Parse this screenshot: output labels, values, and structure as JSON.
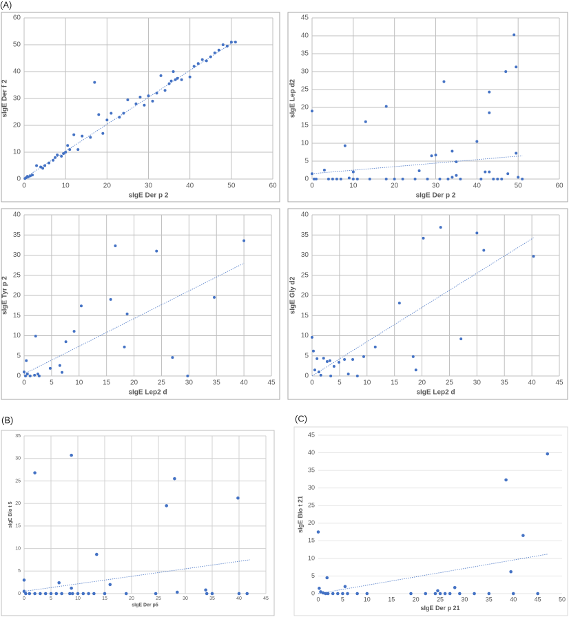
{
  "panel_labels": [
    "(A)",
    "(B)",
    "(C)"
  ],
  "chart_data": [
    {
      "type": "scatter",
      "xlabel": "sIgE Der p 2",
      "ylabel": "sIgE Der f 2",
      "color": "#4472c4",
      "grid": "both",
      "xlim": [
        0,
        60
      ],
      "ylim": [
        0,
        60
      ],
      "xticks": [
        0,
        10,
        20,
        30,
        40,
        50,
        60
      ],
      "yticks": [
        0,
        10,
        20,
        30,
        40,
        50,
        60
      ],
      "x": [
        0.2,
        0.5,
        0.8,
        1,
        1.5,
        2,
        3,
        4,
        4.5,
        5,
        6,
        7,
        7.5,
        8,
        9,
        9.5,
        10,
        10.5,
        11,
        12,
        13,
        14,
        16,
        17,
        18,
        19,
        20,
        21,
        23,
        24,
        25,
        27,
        28,
        29,
        30,
        31,
        32,
        33,
        34,
        35,
        35.5,
        36,
        36.5,
        37,
        38,
        40,
        41,
        42,
        43,
        44,
        45,
        46,
        47,
        48,
        49,
        50,
        51
      ],
      "y": [
        0.2,
        0.5,
        1,
        0.8,
        1.2,
        1.5,
        5,
        4.5,
        4,
        5,
        6,
        7,
        8,
        9,
        8.5,
        9.5,
        10,
        12.5,
        11,
        16.5,
        11,
        16,
        15.5,
        36,
        24,
        17,
        22,
        24.5,
        23,
        24.5,
        29.5,
        28,
        30.5,
        27.5,
        31,
        29,
        32,
        38.5,
        33,
        35.5,
        36.5,
        40,
        37,
        37.5,
        37,
        38,
        42,
        43,
        44.5,
        44,
        45.5,
        47,
        48,
        50,
        49.5,
        51,
        51
      ],
      "trend": {
        "x": [
          0,
          51
        ],
        "y": [
          0.3,
          51.5
        ]
      }
    },
    {
      "type": "scatter",
      "xlabel": "sIgE Der p 2",
      "ylabel": "sIgE Lep d2",
      "color": "#4472c4",
      "grid": "both",
      "xlim": [
        0,
        60
      ],
      "ylim": [
        0,
        45
      ],
      "xticks": [
        0,
        10,
        20,
        30,
        40,
        50,
        60
      ],
      "yticks": [
        0,
        5,
        10,
        15,
        20,
        25,
        30,
        35,
        40,
        45
      ],
      "x": [
        0,
        0,
        0.5,
        1,
        3,
        4,
        5,
        6,
        7,
        8,
        9,
        10,
        10,
        11,
        13,
        14,
        18,
        18,
        20,
        22,
        25,
        26,
        28,
        29,
        30,
        31,
        32,
        33,
        34,
        34,
        35,
        35,
        36,
        40,
        41,
        42,
        43,
        43,
        43,
        44,
        45,
        46,
        47,
        47.5,
        49,
        49.5,
        49.5,
        50,
        51
      ],
      "y": [
        19,
        1.5,
        0,
        0,
        2.5,
        0,
        0,
        0,
        0,
        9.3,
        0.3,
        2,
        0,
        0,
        16,
        0,
        20.3,
        0,
        0,
        0,
        0,
        2.3,
        0,
        6.5,
        6.7,
        0,
        27.2,
        0,
        7.8,
        0.5,
        4.8,
        1,
        0,
        10.5,
        0,
        2,
        24.3,
        18.5,
        2,
        0,
        0,
        0,
        30,
        1.5,
        40.3,
        31.3,
        7.2,
        0.5,
        0
      ],
      "trend": {
        "x": [
          0,
          51
        ],
        "y": [
          1.5,
          6.5
        ]
      }
    },
    {
      "type": "scatter",
      "xlabel": "sIgE Lep2 d",
      "ylabel": "sIgE Tyr p 2",
      "color": "#4472c4",
      "grid": "both",
      "xlim": [
        0,
        45
      ],
      "ylim": [
        0,
        40
      ],
      "xticks": [
        0,
        5,
        10,
        15,
        20,
        25,
        30,
        35,
        40,
        45
      ],
      "yticks": [
        0,
        5,
        10,
        15,
        20,
        25,
        30,
        35,
        40
      ],
      "x": [
        0,
        0.25,
        0.6,
        0.4,
        1.1,
        1.9,
        2.1,
        2.5,
        2.75,
        4.75,
        6.5,
        6.9,
        7.6,
        9.1,
        10.4,
        15.75,
        18.75,
        18.25,
        16.6,
        24.1,
        27,
        34.6,
        29.75,
        40
      ],
      "y": [
        1,
        0,
        0.5,
        3.8,
        0,
        0.2,
        9.9,
        0.5,
        0,
        1.9,
        2.6,
        0.9,
        8.5,
        11.1,
        17.4,
        19,
        15.4,
        7.2,
        32.3,
        31,
        4.6,
        19.5,
        0,
        33.6
      ],
      "trend": {
        "x": [
          0,
          40
        ],
        "y": [
          0.5,
          28
        ]
      }
    },
    {
      "type": "scatter",
      "xlabel": "sIgE Lep2 d",
      "ylabel": "sIgE Gly d2",
      "color": "#4472c4",
      "grid": "both",
      "xlim": [
        0,
        45
      ],
      "ylim": [
        0,
        40
      ],
      "xticks": [
        0,
        5,
        10,
        15,
        20,
        25,
        30,
        35,
        40,
        45
      ],
      "yticks": [
        0,
        5,
        10,
        15,
        20,
        25,
        30,
        35,
        40
      ],
      "x": [
        0,
        0.25,
        0.5,
        0.9,
        1.25,
        1.6,
        2.1,
        2.75,
        3.25,
        3.4,
        4,
        4.9,
        5.9,
        6.6,
        7.4,
        8.25,
        9.4,
        11.5,
        15.9,
        18.4,
        18.9,
        20.25,
        23.4,
        27.1,
        30,
        31.25,
        40.3
      ],
      "y": [
        9.6,
        6.2,
        1.5,
        4.3,
        1,
        0.2,
        4.4,
        3.6,
        3.8,
        0,
        2.4,
        3.4,
        4.1,
        0.5,
        4.1,
        0,
        4.8,
        7.2,
        18.1,
        4.8,
        1.5,
        34.2,
        36.9,
        9.2,
        35.5,
        31.2,
        29.7
      ],
      "trend": {
        "x": [
          0,
          40.3
        ],
        "y": [
          0,
          34.3
        ]
      }
    },
    {
      "type": "scatter",
      "xlabel": "sIgE Der p5",
      "ylabel": "sIgE Blo t 5",
      "color": "#4472c4",
      "grid": "both",
      "xlim": [
        0,
        45
      ],
      "ylim": [
        0,
        35
      ],
      "xticks": [
        0,
        5,
        10,
        15,
        20,
        25,
        30,
        35,
        40,
        45
      ],
      "yticks": [
        0,
        5,
        10,
        15,
        20,
        25,
        30,
        35
      ],
      "x": [
        0,
        0,
        0.3,
        1,
        2,
        2,
        3,
        4,
        5,
        6,
        6.5,
        7,
        8.5,
        8.8,
        8.8,
        9,
        10,
        11,
        12,
        13,
        13.5,
        15,
        16,
        19,
        24.5,
        26.5,
        28,
        28.5,
        33.8,
        34,
        35,
        39.8,
        40,
        41.5
      ],
      "y": [
        3,
        0.5,
        0,
        0,
        26.8,
        0,
        0,
        0,
        0,
        0,
        2.4,
        0,
        0,
        30.7,
        1.2,
        0,
        0,
        0,
        0,
        0,
        8.7,
        0,
        2,
        0,
        0,
        19.5,
        25.5,
        0.3,
        0.8,
        0,
        0,
        21.2,
        0,
        0
      ],
      "trend": {
        "x": [
          0,
          42
        ],
        "y": [
          0.5,
          7.5
        ]
      }
    },
    {
      "type": "scatter",
      "xlabel": "sIgE Der p 21",
      "ylabel": "sIgE Blo t 21",
      "color": "#4472c4",
      "grid": "y",
      "xlim": [
        0,
        50
      ],
      "ylim": [
        0,
        45
      ],
      "xticks": [
        0,
        5,
        10,
        15,
        20,
        25,
        30,
        35,
        40,
        45,
        50
      ],
      "yticks": [
        0,
        5,
        10,
        15,
        20,
        25,
        30,
        35,
        40,
        45
      ],
      "x": [
        0,
        0.2,
        0.5,
        1,
        1.5,
        2,
        1.8,
        3,
        4,
        5,
        5.5,
        6,
        8,
        10,
        19,
        22,
        24,
        24.5,
        25,
        26,
        27,
        28,
        29,
        32,
        35,
        38.5,
        39.5,
        40,
        42,
        45,
        47
      ],
      "y": [
        17.5,
        1.5,
        0.5,
        0.2,
        0,
        0,
        4.5,
        0,
        0,
        0,
        2,
        0,
        0,
        0,
        0,
        0,
        0,
        0.8,
        0,
        0,
        0,
        1.7,
        0,
        0,
        0,
        32.3,
        6.2,
        0,
        16.5,
        0,
        39.7
      ],
      "trend": {
        "x": [
          0,
          47
        ],
        "y": [
          0,
          11.2
        ]
      }
    }
  ]
}
